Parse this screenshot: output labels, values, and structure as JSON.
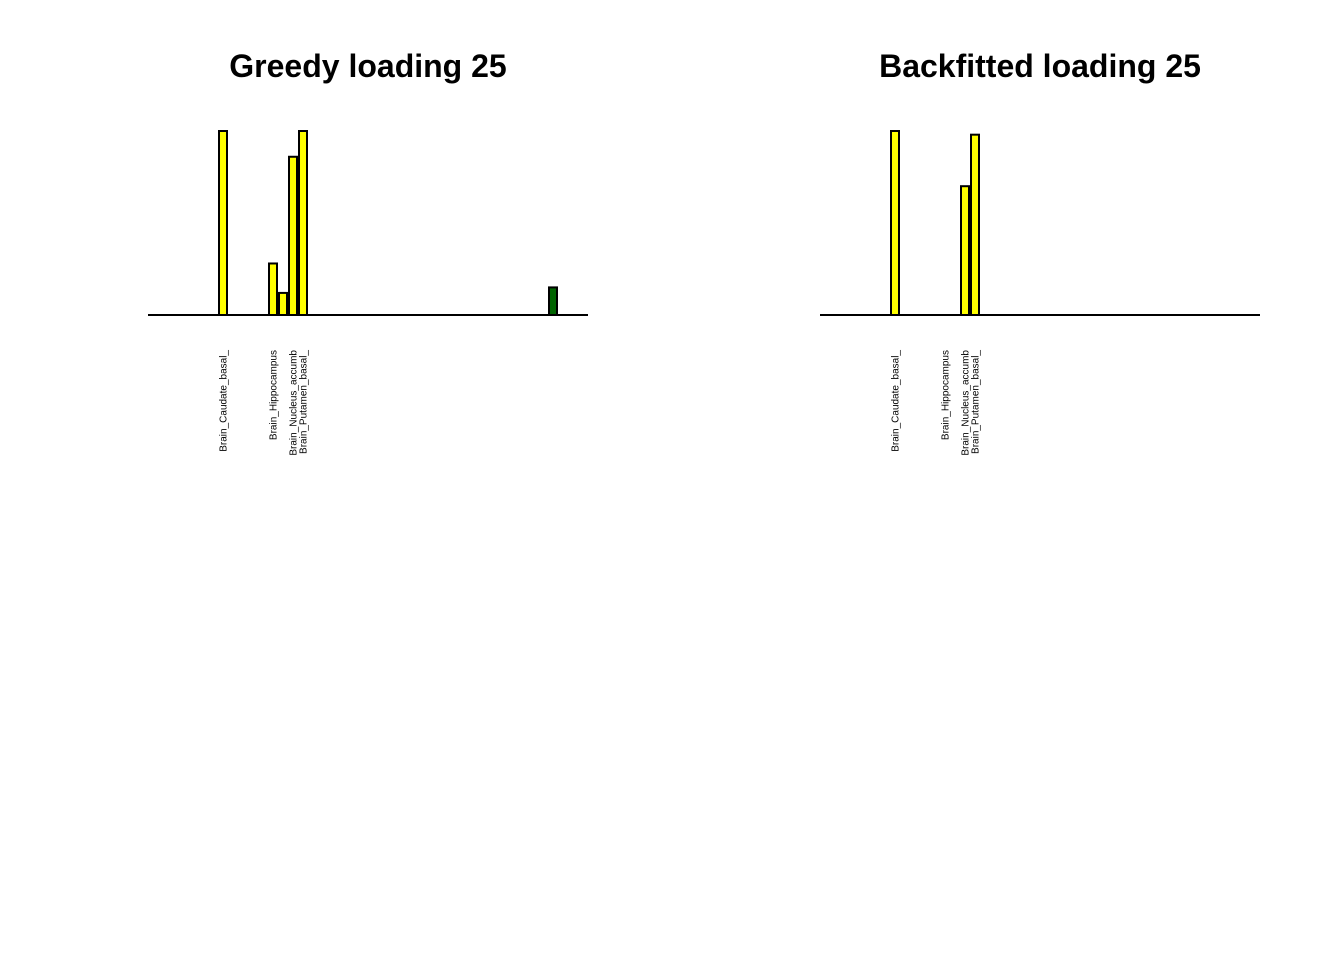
{
  "chart_data": [
    {
      "type": "bar",
      "title": "Greedy loading 25",
      "xlabel": "",
      "ylabel": "",
      "ylim": [
        0,
        1
      ],
      "grid": false,
      "axes": false,
      "n_bars": 44,
      "default_color": "#FFFF00",
      "highlight_color": "#006400",
      "bars": [
        {
          "index": 7,
          "value": 1.0,
          "color": "#FFFF00"
        },
        {
          "index": 12,
          "value": 0.28,
          "color": "#FFFF00"
        },
        {
          "index": 13,
          "value": 0.12,
          "color": "#FFFF00"
        },
        {
          "index": 14,
          "value": 0.86,
          "color": "#FFFF00"
        },
        {
          "index": 15,
          "value": 1.0,
          "color": "#FFFF00"
        },
        {
          "index": 40,
          "value": 0.15,
          "color": "#006400"
        }
      ],
      "labels": [
        {
          "index": 7,
          "text": "Brain_Caudate_basal_"
        },
        {
          "index": 12,
          "text": "Brain_Hippocampus"
        },
        {
          "index": 14,
          "text": "Brain_Nucleus_accumb"
        },
        {
          "index": 15,
          "text": "Brain_Putamen_basal_"
        }
      ]
    },
    {
      "type": "bar",
      "title": "Backfitted loading 25",
      "xlabel": "",
      "ylabel": "",
      "ylim": [
        0,
        1
      ],
      "grid": false,
      "axes": false,
      "n_bars": 44,
      "default_color": "#FFFF00",
      "highlight_color": "#006400",
      "bars": [
        {
          "index": 7,
          "value": 1.0,
          "color": "#FFFF00"
        },
        {
          "index": 14,
          "value": 0.7,
          "color": "#FFFF00"
        },
        {
          "index": 15,
          "value": 0.98,
          "color": "#FFFF00"
        }
      ],
      "labels": [
        {
          "index": 7,
          "text": "Brain_Caudate_basal_"
        },
        {
          "index": 12,
          "text": "Brain_Hippocampus"
        },
        {
          "index": 14,
          "text": "Brain_Nucleus_accumb"
        },
        {
          "index": 15,
          "text": "Brain_Putamen_basal_"
        }
      ]
    }
  ]
}
